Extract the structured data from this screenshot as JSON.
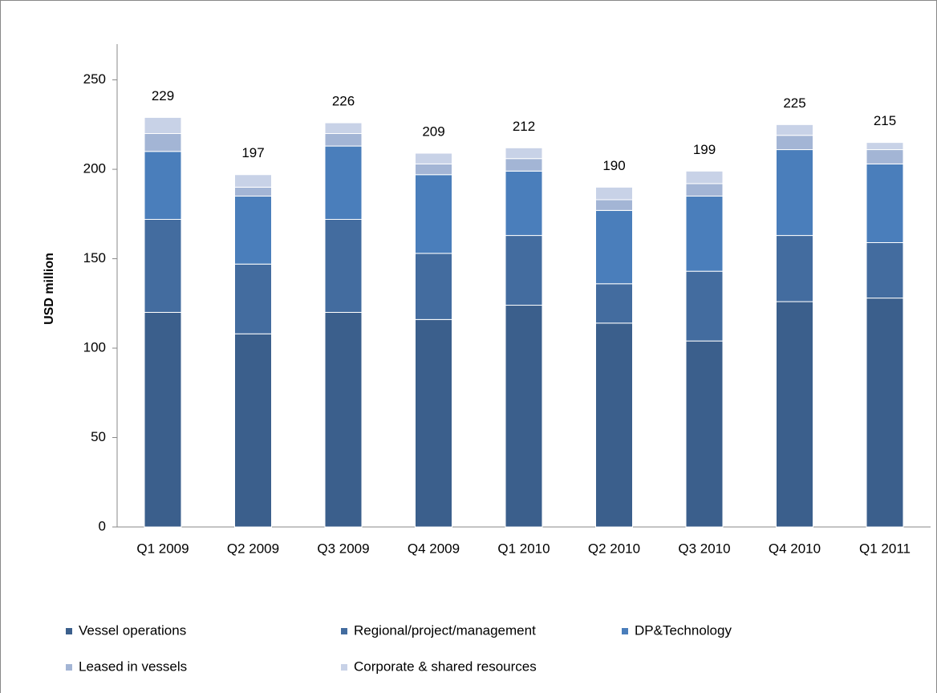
{
  "chart_data": {
    "type": "stacked_bar",
    "ylabel": "USD million",
    "categories": [
      "Q1 2009",
      "Q2 2009",
      "Q3 2009",
      "Q4 2009",
      "Q1 2010",
      "Q2 2010",
      "Q3 2010",
      "Q4 2010",
      "Q1 2011"
    ],
    "series": [
      {
        "name": "Vessel operations",
        "color": "#3b5f8c",
        "values": [
          120,
          108,
          120,
          116,
          124,
          114,
          104,
          126,
          128
        ]
      },
      {
        "name": "Regional/project/management",
        "color": "#436c9f",
        "values": [
          52,
          39,
          52,
          37,
          39,
          22,
          39,
          37,
          31
        ]
      },
      {
        "name": "DP&Technology",
        "color": "#4a7ebb",
        "values": [
          38,
          38,
          41,
          44,
          36,
          41,
          42,
          48,
          44
        ]
      },
      {
        "name": "Leased in vessels",
        "color": "#a3b5d5",
        "values": [
          10,
          5,
          7,
          6,
          7,
          6,
          7,
          8,
          8
        ]
      },
      {
        "name": "Corporate & shared resources",
        "color": "#c8d2e7",
        "values": [
          9,
          7,
          6,
          6,
          6,
          7,
          7,
          6,
          4
        ]
      }
    ],
    "totals": [
      229,
      197,
      226,
      209,
      212,
      190,
      199,
      225,
      215
    ],
    "ylim": [
      0,
      270
    ],
    "yticks": [
      0,
      50,
      100,
      150,
      200,
      250
    ],
    "grid": false
  }
}
